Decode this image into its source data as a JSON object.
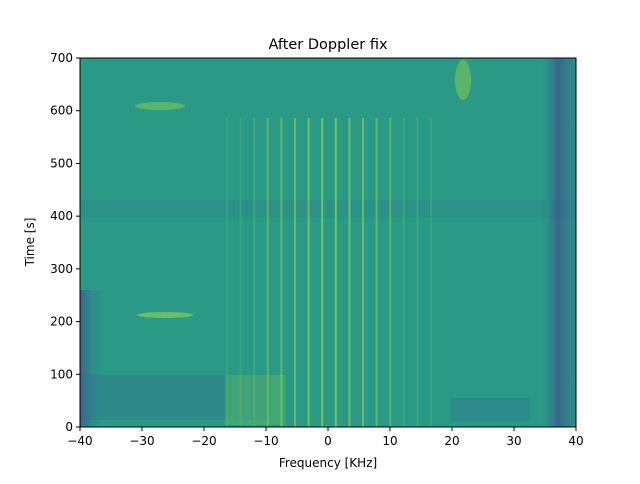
{
  "chart_data": {
    "type": "heatmap",
    "title": "After Doppler fix",
    "x_label": "Frequency [KHz]",
    "y_label": "Time [s]",
    "xlim": [
      -40,
      40
    ],
    "xticks": [
      {
        "value": -40,
        "label": "−40"
      },
      {
        "value": -30,
        "label": "−30"
      },
      {
        "value": -20,
        "label": "−20"
      },
      {
        "value": -10,
        "label": "−10"
      },
      0,
      10,
      20,
      30,
      40
    ],
    "ylim": [
      0,
      700
    ],
    "yticks": [
      0,
      100,
      200,
      300,
      400,
      500,
      600,
      700
    ]
  }
}
